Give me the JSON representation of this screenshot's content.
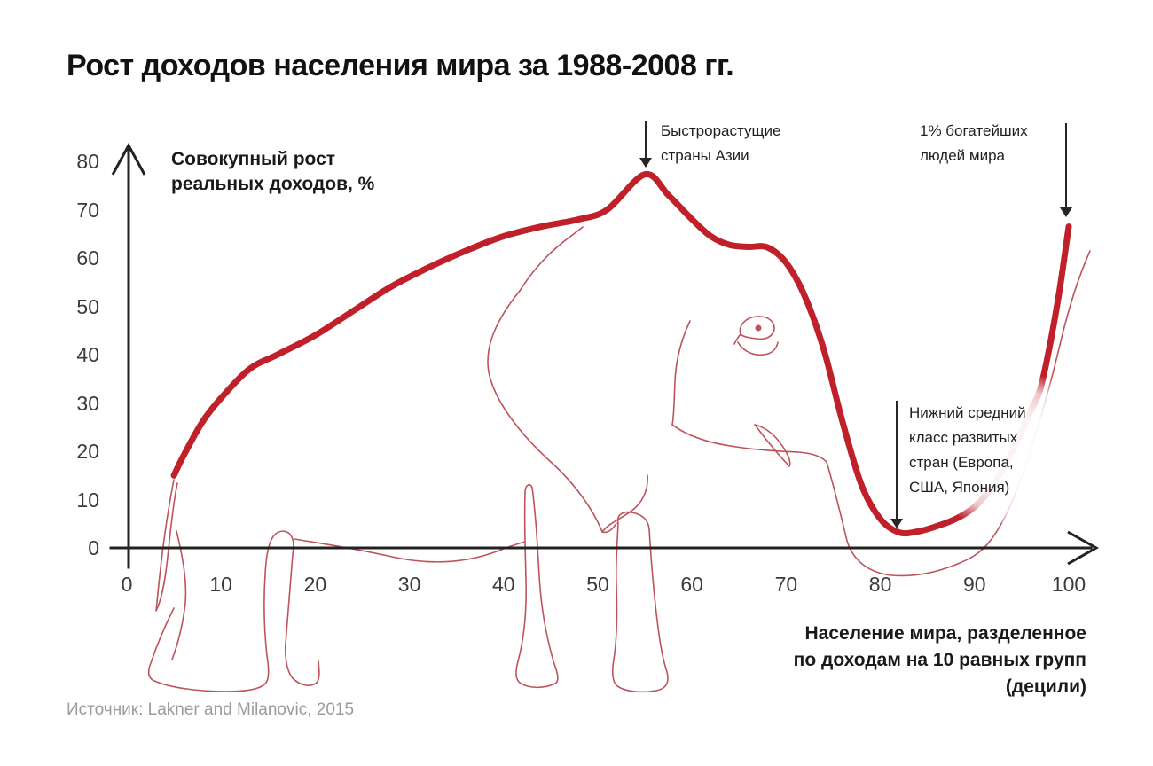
{
  "title": "Рост доходов населения мира за 1988-2008 гг.",
  "y_axis": {
    "label_line1": "Совокупный рост",
    "label_line2": "реальных доходов, %",
    "ticks": [
      "0",
      "10",
      "20",
      "30",
      "40",
      "50",
      "60",
      "70",
      "80"
    ]
  },
  "x_axis": {
    "ticks": [
      "0",
      "10",
      "20",
      "30",
      "40",
      "50",
      "60",
      "70",
      "80",
      "90",
      "100"
    ],
    "caption_line1": "Население мира, разделенное",
    "caption_line2": "по доходам на 10 равных групп",
    "caption_line3": "(децили)"
  },
  "annotations": {
    "asia": {
      "lines": [
        "Быстрорастущие",
        "страны Азии"
      ]
    },
    "rich": {
      "lines": [
        "1% богатейших",
        "людей мира"
      ]
    },
    "middle": {
      "lines": [
        "Нижний средний",
        "класс развитых",
        "стран (Европа,",
        "США, Япония)"
      ]
    }
  },
  "source": "Источник: Lakner and Milanovic, 2015",
  "illustration": "контурный рисунок слона (кривая слона)",
  "colors": {
    "curve": "#c0202a",
    "elephant_outline": "#bd545b",
    "axis": "#222222",
    "text": "#1a1a1a",
    "source_text": "#9b9b9b"
  },
  "chart_data": {
    "type": "line",
    "title": "Рост доходов населения мира за 1988-2008 гг.",
    "xlabel": "Население мира, разделенное по доходам на 10 равных групп (децили)",
    "ylabel": "Совокупный рост реальных доходов, %",
    "xlim": [
      0,
      103
    ],
    "ylim": [
      0,
      80
    ],
    "x_ticks": [
      0,
      10,
      20,
      30,
      40,
      50,
      60,
      70,
      80,
      90,
      100
    ],
    "y_ticks": [
      0,
      10,
      20,
      30,
      40,
      50,
      60,
      70,
      80
    ],
    "grid": false,
    "legend": "none",
    "series": [
      {
        "name": "Совокупный рост реальных доходов, %",
        "color": "#c0202a",
        "points": [
          [
            5,
            15
          ],
          [
            6,
            19
          ],
          [
            8,
            26
          ],
          [
            10,
            31
          ],
          [
            13,
            37
          ],
          [
            16,
            40
          ],
          [
            20,
            44
          ],
          [
            24,
            49
          ],
          [
            28,
            54
          ],
          [
            32,
            58
          ],
          [
            36,
            61.5
          ],
          [
            40,
            64.5
          ],
          [
            44,
            66.5
          ],
          [
            48,
            68
          ],
          [
            51,
            70
          ],
          [
            55,
            77.3
          ],
          [
            57.5,
            73
          ],
          [
            60,
            68
          ],
          [
            62,
            64.5
          ],
          [
            64,
            62.7
          ],
          [
            66,
            62.3
          ],
          [
            68,
            62.2
          ],
          [
            70,
            59
          ],
          [
            72,
            52
          ],
          [
            74,
            41
          ],
          [
            76,
            26
          ],
          [
            78,
            13
          ],
          [
            80,
            6
          ],
          [
            82,
            3.2
          ],
          [
            84,
            3.4
          ],
          [
            86,
            4.5
          ],
          [
            88,
            6
          ],
          [
            90,
            8.5
          ],
          [
            92,
            13
          ],
          [
            94,
            20
          ],
          [
            96,
            28.5
          ],
          [
            97,
            33
          ],
          [
            98,
            42
          ],
          [
            99,
            53
          ],
          [
            100,
            66.5
          ]
        ]
      }
    ],
    "point_annotations": [
      {
        "label": "Быстрорастущие страны Азии",
        "x": 55,
        "y": 77
      },
      {
        "label": "1% богатейших людей мира",
        "x": 100,
        "y": 66
      },
      {
        "label": "Нижний средний класс развитых стран (Европа, США, Япония)",
        "x": 82,
        "y": 3
      }
    ],
    "source": "Источник: Lakner and Milanovic, 2015"
  }
}
